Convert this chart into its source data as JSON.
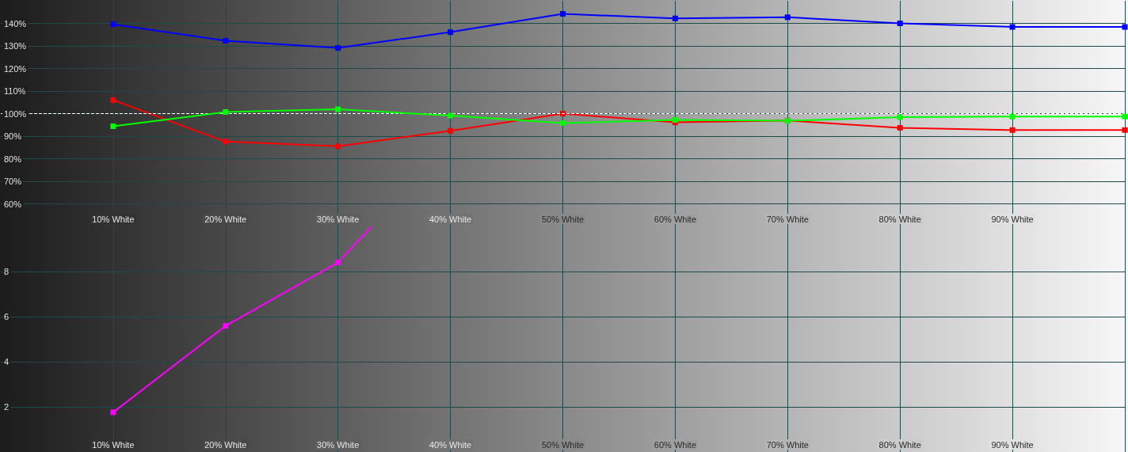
{
  "chart_data": [
    {
      "type": "line",
      "xlim": [
        0,
        100
      ],
      "xticks": [
        {
          "value": 10,
          "label": "10% White"
        },
        {
          "value": 20,
          "label": "20% White"
        },
        {
          "value": 30,
          "label": "30% White"
        },
        {
          "value": 40,
          "label": "40% White"
        },
        {
          "value": 50,
          "label": "50% White"
        },
        {
          "value": 60,
          "label": "60% White"
        },
        {
          "value": 70,
          "label": "70% White"
        },
        {
          "value": 80,
          "label": "80% White"
        },
        {
          "value": 90,
          "label": "90% White"
        },
        {
          "value": 100,
          "label": null
        }
      ],
      "ylim": [
        50,
        150
      ],
      "yticks": [
        {
          "value": 60,
          "label": "60%"
        },
        {
          "value": 70,
          "label": "70%"
        },
        {
          "value": 80,
          "label": "80%"
        },
        {
          "value": 90,
          "label": "90%"
        },
        {
          "value": 100,
          "label": "100%"
        },
        {
          "value": 110,
          "label": "110%"
        },
        {
          "value": 120,
          "label": "120%"
        },
        {
          "value": 130,
          "label": "130%"
        },
        {
          "value": 140,
          "label": "140%"
        }
      ],
      "x": [
        10,
        20,
        30,
        40,
        50,
        60,
        70,
        80,
        90,
        100
      ],
      "series": [
        {
          "color": "#0000ff",
          "values": [
            139.6,
            132.3,
            129.1,
            136.1,
            144.2,
            142.2,
            142.7,
            140.0,
            138.4,
            138.4
          ]
        },
        {
          "color": "#ff0000",
          "values": [
            106.0,
            87.6,
            85.5,
            92.4,
            100.0,
            96.1,
            96.9,
            93.7,
            92.7,
            92.7
          ]
        },
        {
          "color": "#00ff00",
          "values": [
            94.4,
            100.7,
            101.9,
            99.1,
            95.8,
            97.2,
            96.8,
            98.4,
            98.7,
            98.7
          ]
        }
      ],
      "ref_lines": [
        {
          "axis": "y",
          "value": 100,
          "color": "#ffffff",
          "line_style": "dashed"
        }
      ],
      "grid": true,
      "marker": "square",
      "line_style": "solid"
    },
    {
      "type": "line",
      "xlim": [
        0,
        100
      ],
      "xticks": [
        {
          "value": 10,
          "label": "10% White"
        },
        {
          "value": 20,
          "label": "20% White"
        },
        {
          "value": 30,
          "label": "30% White"
        },
        {
          "value": 40,
          "label": "40% White"
        },
        {
          "value": 50,
          "label": "50% White"
        },
        {
          "value": 60,
          "label": "60% White"
        },
        {
          "value": 70,
          "label": "70% White"
        },
        {
          "value": 80,
          "label": "80% White"
        },
        {
          "value": 90,
          "label": "90% White"
        },
        {
          "value": 100,
          "label": null
        }
      ],
      "ylim": [
        0,
        10
      ],
      "yticks": [
        2,
        4,
        6,
        8
      ],
      "x": [
        10,
        20,
        30,
        33
      ],
      "series": [
        {
          "color": "#ff00ff",
          "values": [
            1.76,
            5.59,
            8.4,
            10
          ]
        }
      ],
      "grid": true,
      "marker": "square",
      "line_style": "solid"
    }
  ]
}
